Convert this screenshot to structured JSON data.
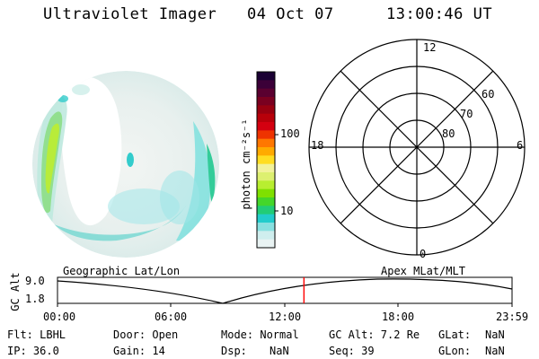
{
  "header": {
    "title": "Ultraviolet Imager",
    "date": "04 Oct 07",
    "time": "13:00:46 UT"
  },
  "colorbar": {
    "unit_label": "photon cm⁻²s⁻¹",
    "ticks": [
      "100",
      "10"
    ],
    "colors": [
      "#1a0033",
      "#3b0038",
      "#5a0030",
      "#7a0020",
      "#990010",
      "#b8000a",
      "#d40010",
      "#ee3300",
      "#ff7700",
      "#ffaa00",
      "#ffdd22",
      "#f2f29a",
      "#ddf070",
      "#b8ee30",
      "#7fe000",
      "#44d62a",
      "#22cc77",
      "#22cccc",
      "#88e0e0",
      "#cfeeee",
      "#e9f3f3"
    ]
  },
  "polar_grid": {
    "mlt_labels": [
      "12",
      "18",
      "6",
      "0"
    ],
    "lat_labels": [
      "60",
      "70",
      "80"
    ]
  },
  "timeline": {
    "ylabel": "GC Alt",
    "y_ticks": [
      "9.0",
      "1.8"
    ],
    "left_title": "Geographic Lat/Lon",
    "right_title": "Apex MLat/MLT",
    "x_ticks": [
      "00:00",
      "06:00",
      "12:00",
      "18:00",
      "23:59"
    ],
    "current_time_fraction": 0.5422,
    "marker_color": "#ff0000"
  },
  "info": {
    "flt": "Flt: LBHL",
    "ip": "IP: 36.0",
    "door": "Door: Open",
    "gain": "Gain: 14",
    "mode": "Mode: Normal",
    "dsp_label": "Dsp:",
    "dsp_value": "NaN",
    "gc_alt": "GC Alt: 7.2 Re",
    "seq": "Seq: 39",
    "glat_label": "GLat:",
    "glat_value": "NaN",
    "glon_label": "GLon:",
    "glon_value": "NaN"
  }
}
